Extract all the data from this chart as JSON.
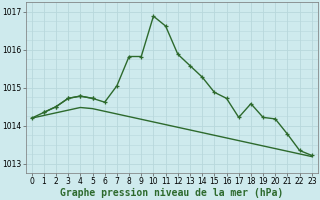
{
  "background_color": "#ceeaed",
  "grid_color": "#b8d8dc",
  "line_color": "#2d6a2d",
  "xlabel": "Graphe pression niveau de la mer (hPa)",
  "xlabel_fontsize": 7,
  "tick_fontsize": 5.5,
  "ylim": [
    1012.75,
    1017.25
  ],
  "xlim": [
    -0.5,
    23.5
  ],
  "yticks": [
    1013,
    1014,
    1015,
    1016,
    1017
  ],
  "xticks": [
    0,
    1,
    2,
    3,
    4,
    5,
    6,
    7,
    8,
    9,
    10,
    11,
    12,
    13,
    14,
    15,
    16,
    17,
    18,
    19,
    20,
    21,
    22,
    23
  ],
  "line1_x": [
    0,
    1,
    2,
    3,
    4,
    5,
    6,
    7,
    8,
    9,
    10,
    11,
    12,
    13,
    14,
    15,
    16,
    17,
    18,
    19,
    20,
    21,
    22,
    23
  ],
  "line1_y": [
    1014.2,
    1014.35,
    1014.5,
    1014.72,
    1014.78,
    1014.72,
    1014.62,
    1015.05,
    1015.82,
    1015.82,
    1016.88,
    1016.62,
    1015.88,
    1015.58,
    1015.28,
    1014.88,
    1014.72,
    1014.22,
    1014.58,
    1014.22,
    1014.18,
    1013.78,
    1013.35,
    1013.22
  ],
  "line2_x": [
    0,
    1,
    2,
    3,
    4,
    5,
    6,
    7,
    8,
    9,
    10,
    11,
    12,
    13,
    14,
    15,
    16,
    17,
    18,
    19,
    20,
    21,
    22,
    23
  ],
  "line2_y": [
    1014.2,
    1014.27,
    1014.34,
    1014.41,
    1014.48,
    1014.45,
    1014.38,
    1014.31,
    1014.24,
    1014.17,
    1014.1,
    1014.03,
    1013.96,
    1013.89,
    1013.82,
    1013.75,
    1013.68,
    1013.61,
    1013.54,
    1013.47,
    1013.4,
    1013.33,
    1013.26,
    1013.19
  ],
  "line3_x": [
    1,
    2,
    3,
    4,
    5
  ],
  "line3_y": [
    1014.35,
    1014.5,
    1014.72,
    1014.78,
    1014.72
  ]
}
